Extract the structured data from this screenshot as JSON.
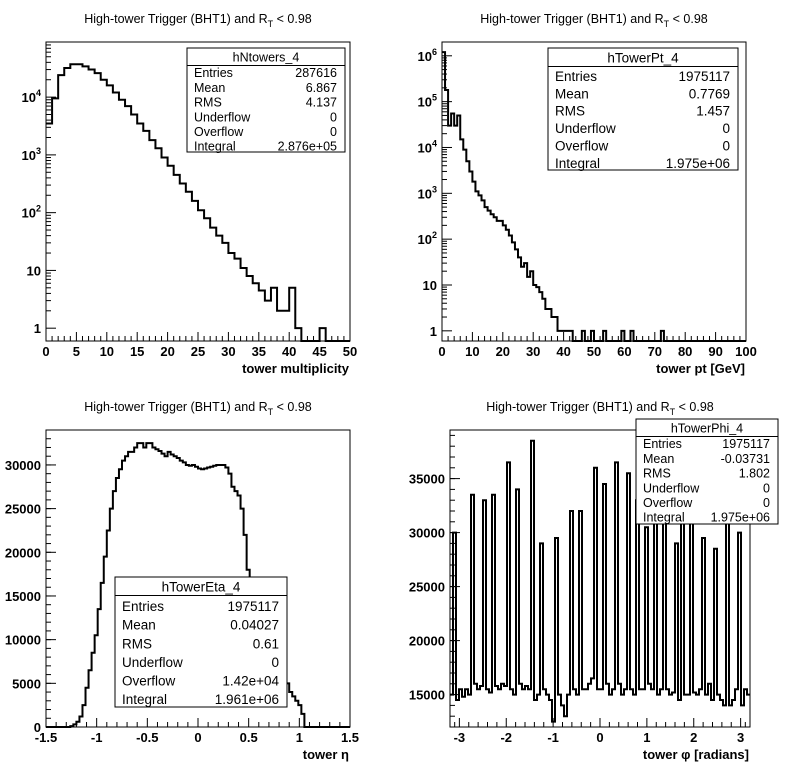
{
  "chart_data": [
    {
      "type": "histogram",
      "title": "High-tower Trigger (BHT1) and R",
      "title_sub": "T",
      "title_tail": " < 0.98",
      "xlabel": "tower multiplicity",
      "ylabel": "",
      "xlim": [
        0,
        50
      ],
      "ylim": [
        0.6,
        90000
      ],
      "log_y": true,
      "xticks": [
        "0",
        "5",
        "10",
        "15",
        "20",
        "25",
        "30",
        "35",
        "40",
        "45",
        "50"
      ],
      "yticks": [
        {
          "base": "1",
          "exp": ""
        },
        {
          "base": "10",
          "exp": ""
        },
        {
          "base": "10",
          "exp": "2"
        },
        {
          "base": "10",
          "exp": "3"
        },
        {
          "base": "10",
          "exp": "4"
        }
      ],
      "legend_position": "top-right",
      "stats": {
        "name": "hNtowers_4",
        "rows": [
          {
            "label": "Entries",
            "value": "287616"
          },
          {
            "label": "Mean",
            "value": "6.867"
          },
          {
            "label": "RMS",
            "value": "4.137"
          },
          {
            "label": "Underflow",
            "value": "0"
          },
          {
            "label": "Overflow",
            "value": "0"
          },
          {
            "label": "Integral",
            "value": "2.876e+05"
          }
        ]
      },
      "bin_width": 1,
      "x": [
        0,
        1,
        2,
        3,
        4,
        5,
        6,
        7,
        8,
        9,
        10,
        11,
        12,
        13,
        14,
        15,
        16,
        17,
        18,
        19,
        20,
        21,
        22,
        23,
        24,
        25,
        26,
        27,
        28,
        29,
        30,
        31,
        32,
        33,
        34,
        35,
        36,
        37,
        38,
        39,
        40,
        41,
        42,
        43,
        44,
        45,
        46,
        47,
        48,
        49
      ],
      "values": [
        3500,
        9500,
        24000,
        32000,
        37000,
        37000,
        34000,
        30000,
        26000,
        20000,
        16000,
        12000,
        9000,
        7000,
        5000,
        3500,
        2600,
        1800,
        1300,
        900,
        650,
        450,
        320,
        230,
        160,
        110,
        80,
        55,
        40,
        30,
        20,
        16,
        11,
        8,
        6,
        4.5,
        3,
        5,
        2,
        2,
        5,
        1,
        0,
        0,
        0,
        1,
        0,
        0,
        0,
        0
      ]
    },
    {
      "type": "histogram",
      "title": "High-tower Trigger (BHT1) and R",
      "title_sub": "T",
      "title_tail": " < 0.98",
      "xlabel": "tower pt [GeV]",
      "ylabel": "",
      "xlim": [
        0,
        100
      ],
      "ylim": [
        0.6,
        2000000
      ],
      "log_y": true,
      "xticks": [
        "0",
        "10",
        "20",
        "30",
        "40",
        "50",
        "60",
        "70",
        "80",
        "90",
        "100"
      ],
      "yticks": [
        {
          "base": "1",
          "exp": ""
        },
        {
          "base": "10",
          "exp": ""
        },
        {
          "base": "10",
          "exp": "2"
        },
        {
          "base": "10",
          "exp": "3"
        },
        {
          "base": "10",
          "exp": "4"
        },
        {
          "base": "10",
          "exp": "5"
        },
        {
          "base": "10",
          "exp": "6"
        }
      ],
      "legend_position": "top-right",
      "stats": {
        "name": "hTowerPt_4",
        "rows": [
          {
            "label": "Entries",
            "value": "1975117"
          },
          {
            "label": "Mean",
            "value": "0.7769"
          },
          {
            "label": "RMS",
            "value": "1.457"
          },
          {
            "label": "Underflow",
            "value": "0"
          },
          {
            "label": "Overflow",
            "value": "0"
          },
          {
            "label": "Integral",
            "value": "1.975e+06"
          }
        ]
      },
      "bin_width": 1,
      "x": [
        0,
        1,
        2,
        3,
        4,
        5,
        6,
        7,
        8,
        9,
        10,
        11,
        12,
        13,
        14,
        15,
        16,
        17,
        18,
        19,
        20,
        21,
        22,
        23,
        24,
        25,
        26,
        27,
        28,
        29,
        30,
        31,
        32,
        33,
        34,
        35,
        36,
        37,
        38,
        39,
        40,
        41,
        42,
        43,
        44,
        45,
        46,
        47,
        48,
        49,
        50,
        51,
        52,
        53,
        54,
        55,
        56,
        57,
        58,
        59,
        60,
        61,
        62,
        63,
        64,
        65,
        66,
        67,
        68,
        69,
        70,
        71,
        72,
        73,
        74,
        75,
        76,
        77,
        78,
        79,
        80,
        81,
        82,
        83,
        84,
        85,
        86,
        87,
        88,
        89,
        90,
        91,
        92,
        93,
        94,
        95,
        96,
        97,
        98,
        99
      ],
      "values": [
        1200000,
        180000,
        30000,
        55000,
        30000,
        50000,
        15000,
        9000,
        5000,
        3000,
        1800,
        1100,
        900,
        700,
        500,
        420,
        350,
        300,
        250,
        250,
        200,
        160,
        120,
        85,
        60,
        40,
        25,
        30,
        15,
        20,
        10,
        9,
        7,
        5,
        3,
        3,
        2,
        2,
        1,
        1,
        1,
        1,
        1,
        0,
        0,
        0,
        1,
        0,
        0,
        1,
        0,
        0,
        0,
        1,
        0,
        0,
        0,
        0,
        0,
        1,
        0,
        0,
        1,
        0,
        0,
        0,
        0,
        0,
        0,
        0,
        0,
        0,
        1,
        0,
        0,
        0,
        0,
        0,
        0,
        0,
        0,
        0,
        0,
        0,
        0,
        0,
        0,
        0,
        0,
        0,
        0,
        0,
        0,
        0,
        0,
        0,
        0,
        0,
        0,
        0
      ]
    },
    {
      "type": "histogram",
      "title": "High-tower Trigger (BHT1) and R",
      "title_sub": "T",
      "title_tail": " < 0.98",
      "xlabel": "tower η",
      "ylabel": "",
      "xlim": [
        -1.5,
        1.5
      ],
      "ylim": [
        0,
        34000
      ],
      "log_y": false,
      "xticks": [
        "-1.5",
        "-1",
        "-0.5",
        "0",
        "0.5",
        "1",
        "1.5"
      ],
      "yticks": [
        "0",
        "5000",
        "10000",
        "15000",
        "20000",
        "25000",
        "30000"
      ],
      "legend_position": "bottom-center",
      "stats": {
        "name": "hTowerEta_4",
        "rows": [
          {
            "label": "Entries",
            "value": "1975117"
          },
          {
            "label": "Mean",
            "value": "0.04027"
          },
          {
            "label": "RMS",
            "value": "0.61"
          },
          {
            "label": "Underflow",
            "value": "0"
          },
          {
            "label": "Overflow",
            "value": "1.42e+04"
          },
          {
            "label": "Integral",
            "value": "1.961e+06"
          }
        ]
      },
      "x_start": -1.5,
      "bin_width": 0.03,
      "values": [
        0,
        0,
        0,
        0,
        0,
        0,
        0,
        0,
        100,
        300,
        600,
        1200,
        2500,
        4500,
        6500,
        8500,
        10500,
        13500,
        16500,
        19500,
        22500,
        25000,
        27000,
        28500,
        29500,
        30500,
        31000,
        31500,
        31500,
        32000,
        32500,
        32500,
        32000,
        32500,
        32500,
        32000,
        31800,
        31600,
        31300,
        31000,
        31500,
        31200,
        31000,
        30800,
        30500,
        30300,
        30000,
        29900,
        30000,
        29800,
        29600,
        29500,
        29600,
        29700,
        29800,
        29900,
        30000,
        30000,
        30000,
        29700,
        29000,
        27500,
        27000,
        26500,
        25000,
        22000,
        18000,
        13000,
        10000,
        9000,
        8000,
        7500,
        7000,
        6500,
        6300,
        6000,
        6000,
        5800,
        5500,
        5000,
        4000,
        3500,
        3000,
        2500,
        1500,
        0,
        0,
        0,
        0,
        0,
        0,
        0,
        0,
        0,
        0,
        0,
        0,
        0,
        0,
        0
      ]
    },
    {
      "type": "histogram",
      "title": "High-tower Trigger (BHT1) and R",
      "title_sub": "T",
      "title_tail": " < 0.98",
      "xlabel": "tower φ [radians]",
      "ylabel": "",
      "xlim": [
        -3.2,
        3.2
      ],
      "ylim": [
        12000,
        39500
      ],
      "log_y": false,
      "xticks": [
        "-3",
        "-2",
        "-1",
        "0",
        "1",
        "2",
        "3"
      ],
      "yticks": [
        "15000",
        "20000",
        "25000",
        "30000",
        "35000"
      ],
      "legend_position": "top-right",
      "stats": {
        "name": "hTowerPhi_4",
        "rows": [
          {
            "label": "Entries",
            "value": "1975117"
          },
          {
            "label": "Mean",
            "value": "-0.03731"
          },
          {
            "label": "RMS",
            "value": "1.802"
          },
          {
            "label": "Underflow",
            "value": "0"
          },
          {
            "label": "Overflow",
            "value": "0"
          },
          {
            "label": "Integral",
            "value": "1.975e+06"
          }
        ]
      },
      "x_start": -3.2,
      "bin_width": 0.064,
      "values": [
        15000,
        30000,
        14500,
        15500,
        14800,
        15500,
        15000,
        33500,
        16000,
        15500,
        15800,
        33000,
        15500,
        15200,
        33500,
        15800,
        15500,
        16000,
        15800,
        36500,
        15500,
        15000,
        34000,
        16000,
        15500,
        15800,
        15500,
        38500,
        14500,
        15000,
        29000,
        15500,
        15000,
        14500,
        12500,
        29500,
        15000,
        14000,
        13000,
        15000,
        32000,
        15500,
        15000,
        32000,
        15500,
        15500,
        16000,
        16500,
        36000,
        15500,
        15500,
        34500,
        16000,
        15000,
        15500,
        36500,
        16000,
        15000,
        15500,
        35500,
        15500,
        15000,
        33000,
        15500,
        15500,
        30500,
        16000,
        15500,
        31500,
        15000,
        15500,
        33000,
        15500,
        15000,
        15200,
        29000,
        14500,
        31500,
        15000,
        15000,
        33500,
        15200,
        15000,
        15500,
        29500,
        15000,
        16000,
        14500,
        28500,
        15000,
        14500,
        14000,
        31000,
        14000,
        14500,
        15500,
        30000,
        14000,
        15500,
        15000
      ]
    }
  ]
}
